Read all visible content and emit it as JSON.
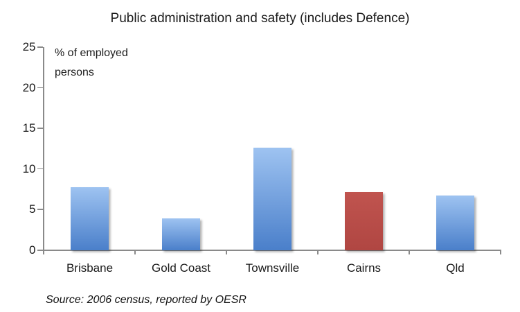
{
  "chart_data": {
    "type": "bar",
    "title": "Public administration and safety (includes Defence)",
    "ylabel": "% of employed\npersons",
    "xlabel": "",
    "categories": [
      "Brisbane",
      "Gold Coast",
      "Townsville",
      "Cairns",
      "Qld"
    ],
    "values": [
      7.8,
      3.9,
      12.6,
      7.2,
      6.7
    ],
    "bar_colors": [
      "blue",
      "blue",
      "blue",
      "red",
      "blue"
    ],
    "ylim": [
      0,
      25
    ],
    "yticks": [
      0,
      5,
      10,
      15,
      20,
      25
    ],
    "grid": false,
    "legend": false,
    "source_note": "Source: 2006 census, reported by OESR",
    "palette": {
      "blue": {
        "top": "#9ec3f1",
        "bottom": "#4a7fca"
      },
      "red": {
        "top": "#c0544f",
        "bottom": "#b04642"
      },
      "axis": "#8a8a8a",
      "text": "#1a1a1a"
    }
  }
}
